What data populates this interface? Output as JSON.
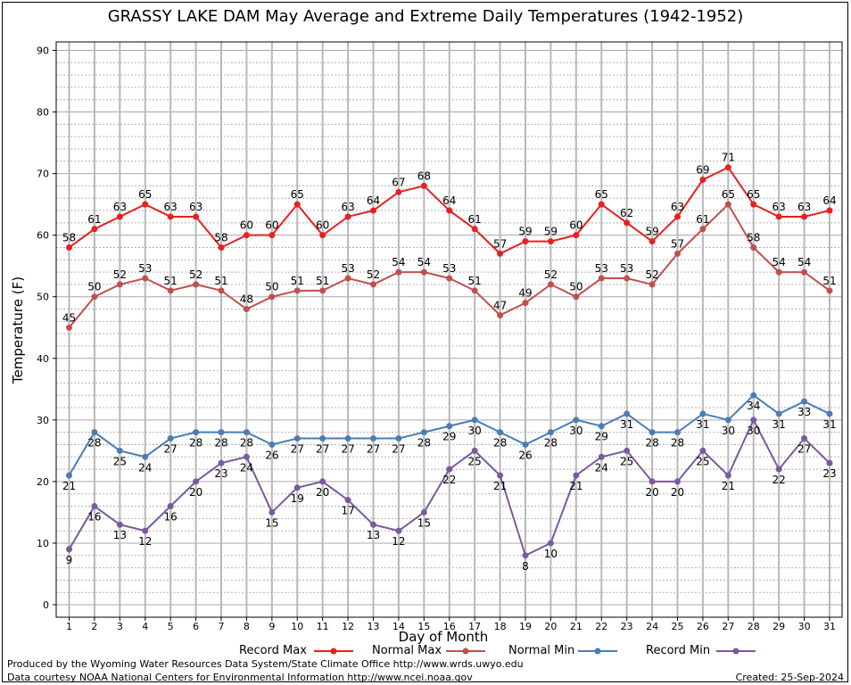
{
  "chart_data": {
    "type": "line",
    "title": "GRASSY LAKE DAM May Average and Extreme Daily Temperatures (1942-1952)",
    "xlabel": "Day of Month",
    "ylabel": "Temperature (F)",
    "ylim": [
      0,
      90
    ],
    "yticks": [
      "0",
      "10",
      "20",
      "30",
      "40",
      "50",
      "60",
      "70",
      "80",
      "90"
    ],
    "x": [
      "1",
      "2",
      "3",
      "4",
      "5",
      "6",
      "7",
      "8",
      "9",
      "10",
      "11",
      "12",
      "13",
      "14",
      "15",
      "16",
      "17",
      "18",
      "19",
      "20",
      "21",
      "22",
      "23",
      "24",
      "25",
      "26",
      "27",
      "28",
      "29",
      "30",
      "31"
    ],
    "grid": true,
    "legend_position": "bottom",
    "series": [
      {
        "name": "Record Max",
        "color": "#e8201e",
        "values": [
          58,
          61,
          63,
          65,
          63,
          63,
          58,
          60,
          60,
          65,
          60,
          63,
          64,
          67,
          68,
          64,
          61,
          57,
          59,
          59,
          60,
          65,
          62,
          59,
          63,
          69,
          71,
          65,
          63,
          63,
          64
        ]
      },
      {
        "name": "Normal Max",
        "color": "#c0504d",
        "values": [
          45,
          50,
          52,
          53,
          51,
          52,
          51,
          48,
          50,
          51,
          51,
          53,
          52,
          54,
          54,
          53,
          51,
          47,
          49,
          52,
          50,
          53,
          53,
          52,
          57,
          61,
          65,
          58,
          54,
          54,
          51
        ]
      },
      {
        "name": "Normal Min",
        "color": "#4a7eb5",
        "values": [
          21,
          28,
          25,
          24,
          27,
          28,
          28,
          28,
          26,
          27,
          27,
          27,
          27,
          27,
          28,
          29,
          30,
          28,
          26,
          28,
          30,
          29,
          31,
          28,
          28,
          31,
          30,
          34,
          31,
          33,
          31
        ]
      },
      {
        "name": "Record Min",
        "color": "#7a5a9e",
        "values": [
          9,
          16,
          13,
          12,
          16,
          20,
          23,
          24,
          15,
          19,
          20,
          17,
          13,
          12,
          15,
          22,
          25,
          21,
          8,
          10,
          21,
          24,
          25,
          20,
          20,
          25,
          21,
          30,
          22,
          27,
          23
        ]
      }
    ]
  },
  "footer": {
    "produced_by": "Produced by the Wyoming Water Resources Data System/State Climate Office http://www.wrds.uwyo.edu",
    "courtesy": "Data courtesy NOAA National Centers for Environmental Information http://www.ncei.noaa.gov",
    "created": "Created:  25-Sep-2024"
  }
}
